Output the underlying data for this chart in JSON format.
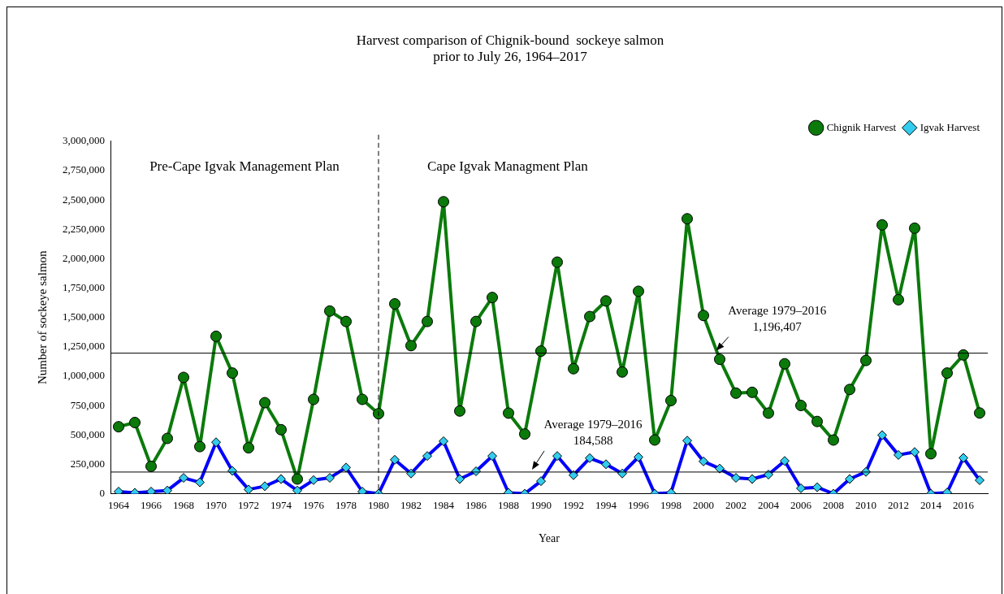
{
  "chart_data": {
    "type": "line",
    "title": "Harvest comparison of Chignik-bound  sockeye salmon\nprior to July 26, 1964–2017",
    "xlabel": "Year",
    "ylabel": "Number of sockeye salmon",
    "categories": [
      "1964",
      null,
      "1966",
      null,
      "1968",
      null,
      "1970",
      null,
      "1972",
      null,
      "1974",
      null,
      "1976",
      null,
      "1978",
      null,
      "1980",
      null,
      "1982",
      null,
      "1984",
      null,
      "1986",
      null,
      "1988",
      null,
      "1990",
      null,
      "1992",
      null,
      "1994",
      null,
      "1996",
      null,
      "1998",
      null,
      "2000",
      null,
      "2002",
      null,
      "2004",
      null,
      "2006",
      null,
      "2008",
      null,
      "2010",
      null,
      "2012",
      null,
      "2014",
      null,
      "2016",
      null
    ],
    "series": [
      {
        "name": "Chignik Harvest",
        "color": "#0b7a0b",
        "marker": "circle",
        "values": [
          570000,
          606000,
          233000,
          471000,
          990000,
          401000,
          1340000,
          1027000,
          391000,
          775000,
          545000,
          125000,
          803000,
          1555000,
          1466000,
          803000,
          681000,
          1616000,
          1260000,
          1466000,
          2485000,
          704000,
          1466000,
          1670000,
          686000,
          508000,
          1214000,
          1971000,
          1064000,
          1508000,
          1641000,
          1036000,
          1723000,
          457000,
          793000,
          2340000,
          1517000,
          1144000,
          856000,
          863000,
          686000,
          1106000,
          751000,
          615000,
          457000,
          887000,
          1134000,
          2288000,
          1651000,
          2260000,
          340000,
          1027000,
          1181000,
          687000
        ]
      },
      {
        "name": "Igvak Harvest",
        "color": "#0000ff",
        "marker": "diamond",
        "values": [
          18000,
          8000,
          18000,
          27000,
          135000,
          97000,
          438000,
          195000,
          36000,
          64000,
          125000,
          27000,
          116000,
          135000,
          223000,
          18000,
          0,
          289000,
          172000,
          321000,
          447000,
          125000,
          191000,
          321000,
          8000,
          0,
          107000,
          321000,
          158000,
          303000,
          251000,
          172000,
          312000,
          0,
          8000,
          452000,
          275000,
          214000,
          135000,
          125000,
          163000,
          279000,
          46000,
          55000,
          0,
          125000,
          186000,
          499000,
          330000,
          355000,
          0,
          10000,
          305000,
          115000
        ]
      }
    ],
    "ylim": [
      0,
      3000000
    ],
    "yticks": [
      0,
      {
        "value": 250000,
        "label": "250,000"
      },
      {
        "value": 500000,
        "label": "500,000"
      },
      {
        "value": 750000,
        "label": "750,000"
      },
      {
        "value": 1000000,
        "label": "1,000,000"
      },
      {
        "value": 1250000,
        "label": "1,250,000"
      },
      {
        "value": 1500000,
        "label": "1,500,000"
      },
      {
        "value": 1750000,
        "label": "1,750,000"
      },
      {
        "value": 2000000,
        "label": "2,000,000"
      },
      {
        "value": 2250000,
        "label": "2,250,000"
      },
      {
        "value": 2500000,
        "label": "2,500,000"
      },
      {
        "value": 2750000,
        "label": "2,750,000"
      },
      {
        "value": 3000000,
        "label": "3,000,000"
      }
    ],
    "grid": false,
    "legend": "top right",
    "line_style": "solid",
    "ref_lines": [
      {
        "axis": "x",
        "value": "1980",
        "line_style": "dashed",
        "color": "#000000"
      },
      {
        "axis": "y",
        "value": 1196407,
        "label": "Average 1979–2016\n1,196,407",
        "color": "#000000"
      },
      {
        "axis": "y",
        "value": 184588,
        "label": "Average 1979–2016\n184,588",
        "color": "#000000"
      }
    ],
    "annotations": [
      "Pre-Cape Igvak Management Plan",
      "Cape Igvak Managment Plan"
    ]
  }
}
